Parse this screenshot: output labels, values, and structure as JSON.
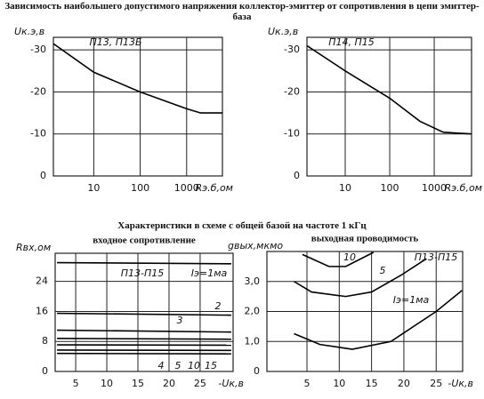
{
  "headings": [
    "Зависимость наибольшего допустимого напряжения коллектор-эмиттер от сопротивления в цепи эмиттер-база",
    "Характеристики в схеме с общей базой на частоте 1 кГц"
  ],
  "chart_data": [
    {
      "type": "line",
      "annotation": "П13, П13Б",
      "x_label": "Rэ.б,ом",
      "y_label": "Uк.э,в",
      "xscale": "log",
      "xlim": [
        1.35,
        5900
      ],
      "xticks": [
        10,
        100,
        1000
      ],
      "ylim": [
        0,
        -33
      ],
      "yticks": [
        0,
        -10,
        -20,
        -30
      ],
      "grid": true,
      "series": [
        {
          "color": "#000000",
          "x": [
            1.35,
            10,
            100,
            1000,
            2000,
            5900
          ],
          "values": [
            -31.5,
            -24.7,
            -20,
            -16,
            -15,
            -15
          ]
        }
      ]
    },
    {
      "type": "line",
      "annotation": "П14, П15",
      "x_label": "Rэ.б,ом",
      "y_label": "Uк.э,в",
      "xscale": "log",
      "xlim": [
        1.38,
        6900
      ],
      "xticks": [
        10,
        100,
        1000
      ],
      "ylim": [
        0,
        -33
      ],
      "yticks": [
        0,
        -10,
        -20,
        -30
      ],
      "grid": true,
      "series": [
        {
          "color": "#000000",
          "x": [
            1.38,
            10,
            100,
            480,
            1600,
            6900
          ],
          "values": [
            -31,
            -25,
            -18.5,
            -13,
            -10.4,
            -10
          ]
        }
      ]
    },
    {
      "type": "line",
      "title": "входное сопротивление",
      "annotation": "П13-П15",
      "x_label": "-Uк,в",
      "y_label": "Rвх,ом",
      "xlim": [
        1.7,
        30.3
      ],
      "xticks": [
        5,
        10,
        15,
        20,
        25
      ],
      "ylim": [
        0,
        31.5
      ],
      "yticks": [
        0,
        8,
        16,
        24
      ],
      "grid": true,
      "series": [
        {
          "name": "Iэ=1ма",
          "color": "#000000",
          "x": [
            2,
            30
          ],
          "values": [
            29,
            28.7
          ]
        },
        {
          "name": "2",
          "color": "#000000",
          "x": [
            2,
            30
          ],
          "values": [
            15.5,
            15
          ]
        },
        {
          "name": "3",
          "color": "#000000",
          "x": [
            2,
            30
          ],
          "values": [
            11,
            10.5
          ]
        },
        {
          "name": "4",
          "color": "#000000",
          "x": [
            2,
            30
          ],
          "values": [
            8.8,
            8.6
          ]
        },
        {
          "name": "5",
          "color": "#000000",
          "x": [
            2,
            30
          ],
          "values": [
            7.1,
            7
          ]
        },
        {
          "name": "10",
          "color": "#000000",
          "x": [
            2,
            30
          ],
          "values": [
            5.7,
            5.6
          ]
        },
        {
          "name": "15",
          "color": "#000000",
          "x": [
            2,
            30
          ],
          "values": [
            4.8,
            4.7
          ]
        }
      ]
    },
    {
      "type": "line",
      "title": "выходная проводимость",
      "annotation": "П13-П15",
      "x_label": "-Uк,в",
      "y_label": "gвых,мкмо",
      "xlim": [
        -1.2,
        29.1
      ],
      "xticks": [
        5,
        10,
        15,
        20,
        25
      ],
      "ylim": [
        0,
        4.0
      ],
      "yticks": [
        0,
        {
          "value": 1,
          "label": "1,0"
        },
        {
          "value": 2,
          "label": "2,0"
        },
        {
          "value": 3,
          "label": "3,0"
        }
      ],
      "grid": true,
      "series": [
        {
          "name": "Iэ=1ма",
          "color": "#000000",
          "x": [
            3,
            7,
            12,
            18,
            25,
            29
          ],
          "values": [
            1.26,
            0.9,
            0.74,
            1.0,
            2.0,
            2.7
          ]
        },
        {
          "name": "5",
          "color": "#000000",
          "x": [
            3,
            5.7,
            11,
            15,
            19.5,
            23.5
          ],
          "values": [
            3.0,
            2.65,
            2.5,
            2.65,
            3.2,
            3.76
          ]
        },
        {
          "name": "10",
          "color": "#000000",
          "x": [
            4.3,
            8.4,
            11,
            15.3
          ],
          "values": [
            3.9,
            3.5,
            3.5,
            3.97
          ]
        }
      ]
    }
  ]
}
